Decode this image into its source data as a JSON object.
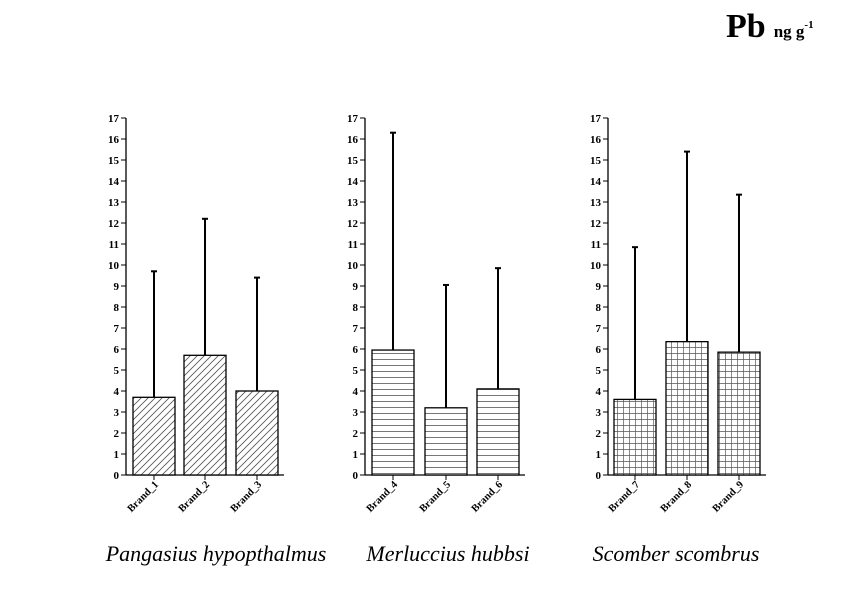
{
  "title": {
    "element": "Pb",
    "unit": "ng g",
    "unit_exponent": "-1"
  },
  "chart_data": [
    {
      "type": "bar",
      "title": "Pangasius hypopthalmus",
      "categories": [
        "Brand_1",
        "Brand_2",
        "Brand_3"
      ],
      "values": [
        3.7,
        5.7,
        4.0
      ],
      "error_upper": [
        9.7,
        12.2,
        9.4
      ],
      "ylim": [
        0,
        17
      ],
      "yticks": [
        0,
        1,
        2,
        3,
        4,
        5,
        6,
        7,
        8,
        9,
        10,
        11,
        12,
        13,
        14,
        15,
        16,
        17
      ],
      "pattern": "diagonal-hatch",
      "grid": false
    },
    {
      "type": "bar",
      "title": "Merluccius hubbsi",
      "categories": [
        "Brand_4",
        "Brand_5",
        "Brand_6"
      ],
      "values": [
        5.95,
        3.2,
        4.1
      ],
      "error_upper": [
        16.3,
        9.05,
        9.85
      ],
      "ylim": [
        0,
        17
      ],
      "yticks": [
        0,
        1,
        2,
        3,
        4,
        5,
        6,
        7,
        8,
        9,
        10,
        11,
        12,
        13,
        14,
        15,
        16,
        17
      ],
      "pattern": "horizontal-lines",
      "grid": false
    },
    {
      "type": "bar",
      "title": "Scomber scombrus",
      "categories": [
        "Brand_7",
        "Brand_8",
        "Brand_9"
      ],
      "values": [
        3.6,
        6.35,
        5.85
      ],
      "error_upper": [
        10.85,
        15.4,
        13.35
      ],
      "ylim": [
        0,
        17
      ],
      "yticks": [
        0,
        1,
        2,
        3,
        4,
        5,
        6,
        7,
        8,
        9,
        10,
        11,
        12,
        13,
        14,
        15,
        16,
        17
      ],
      "pattern": "grid-crosshatch",
      "grid": false
    }
  ]
}
